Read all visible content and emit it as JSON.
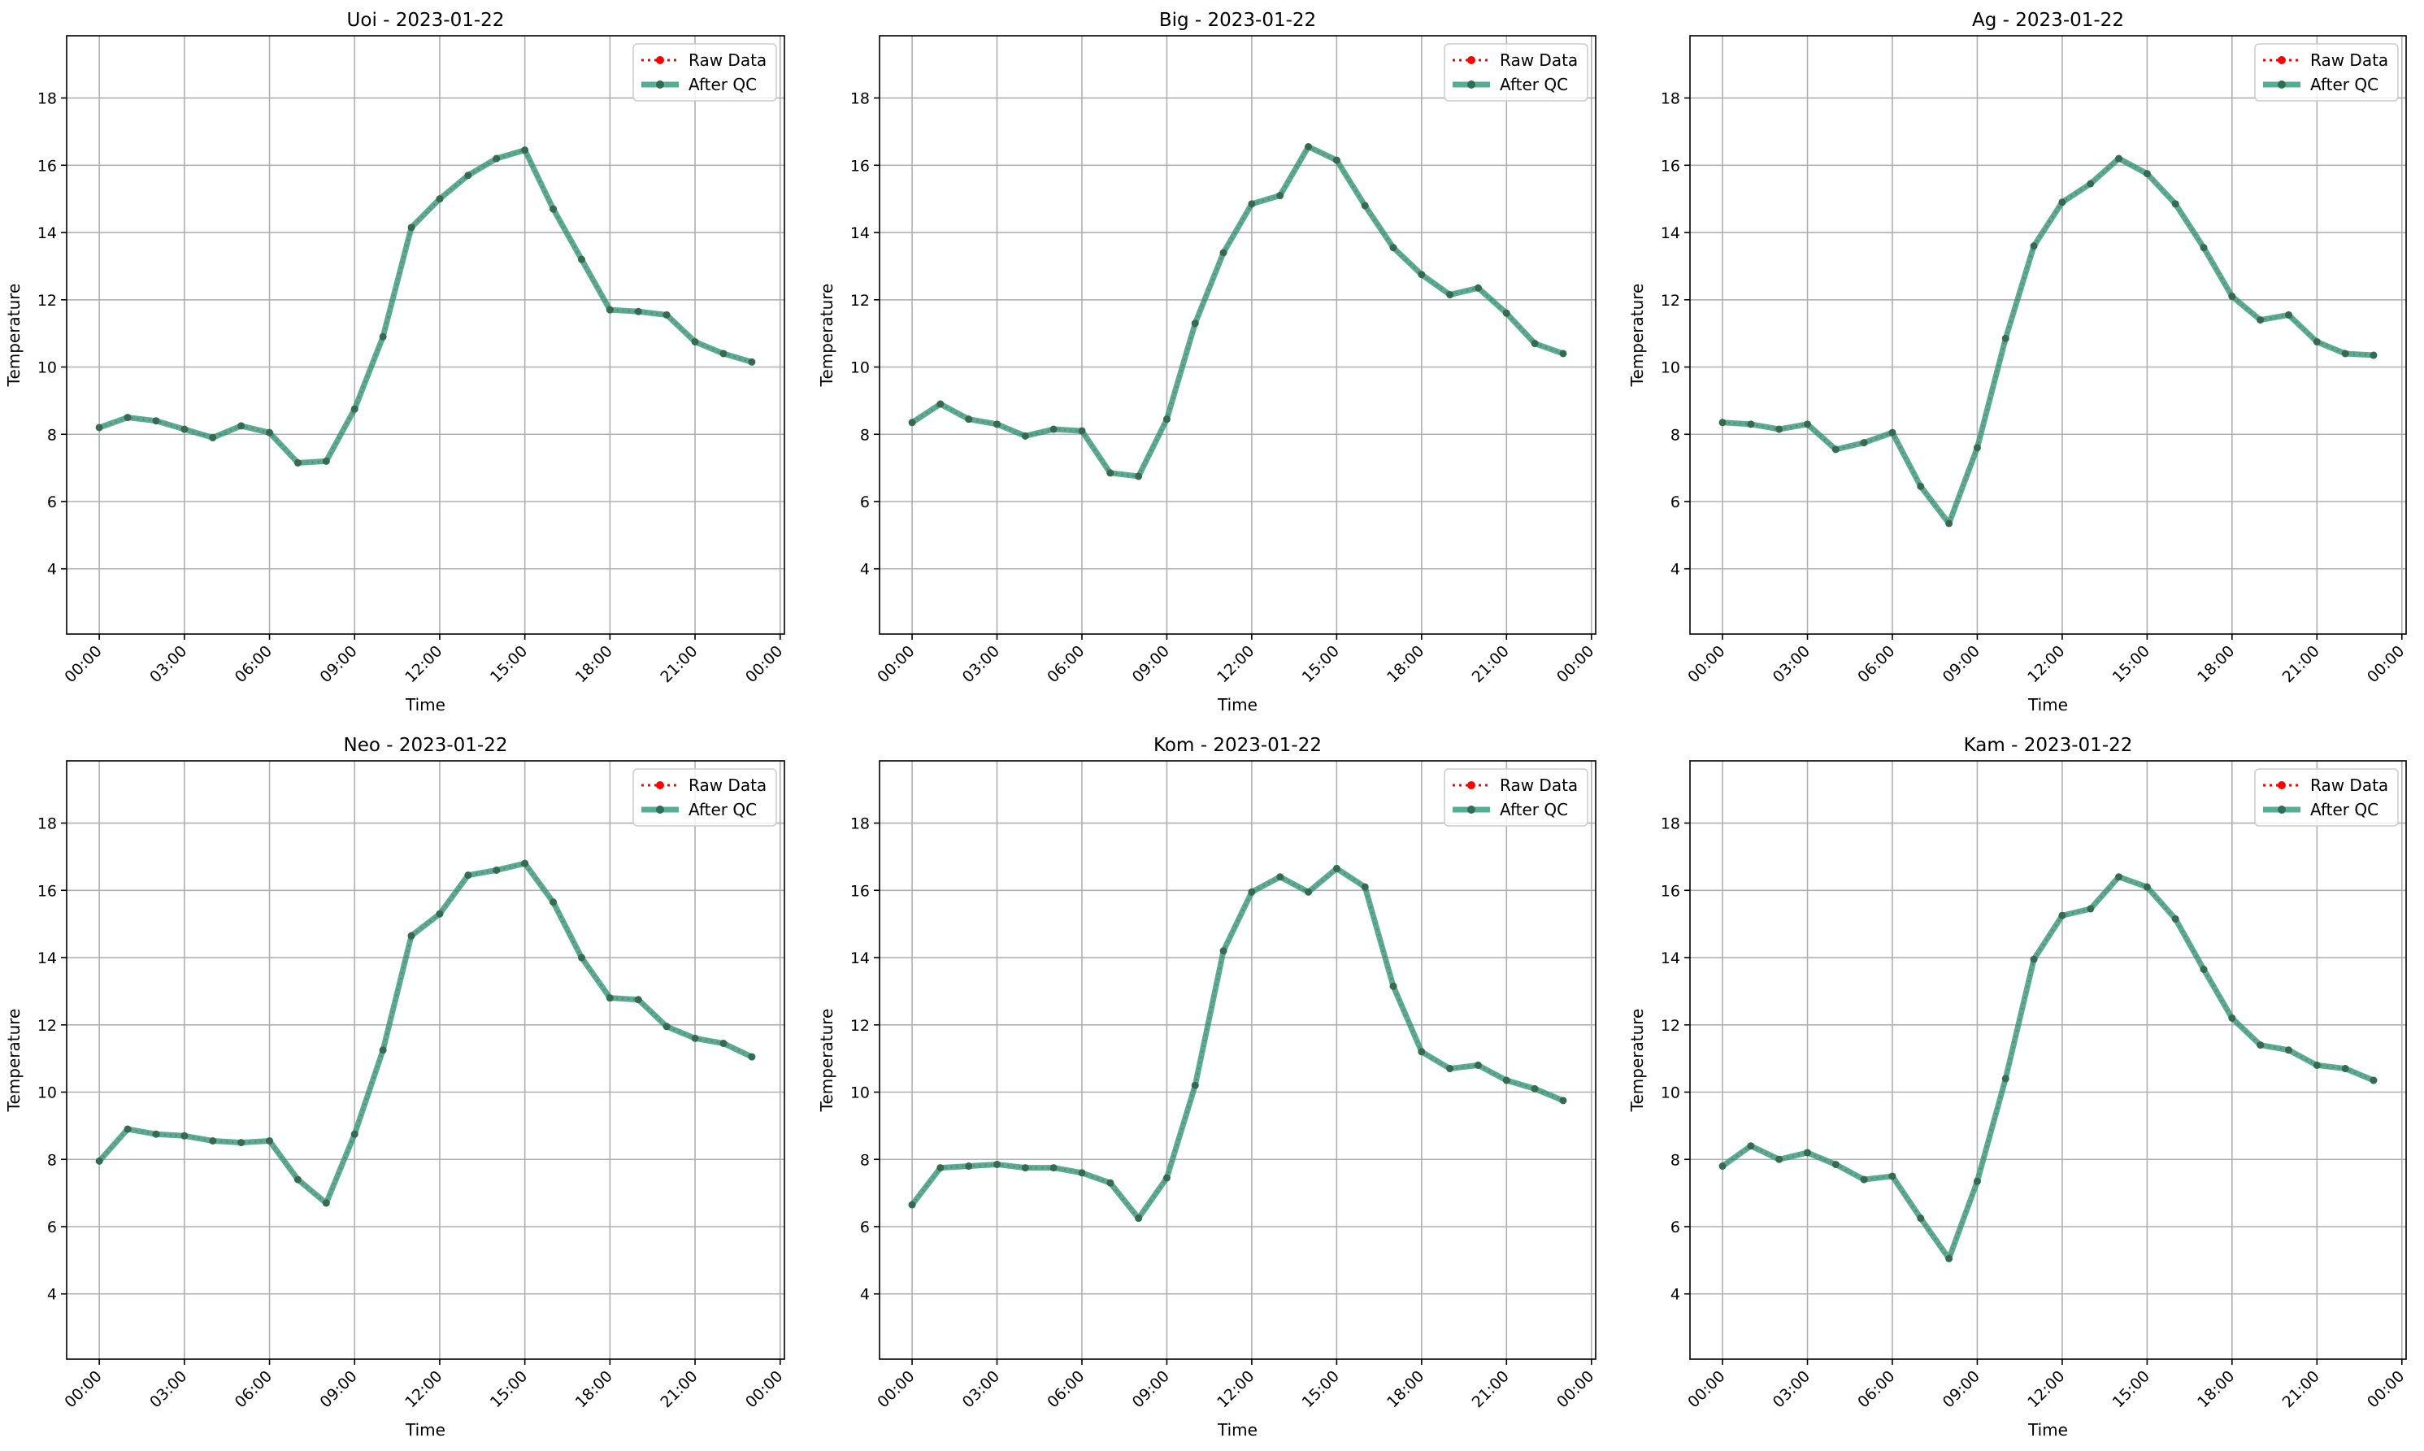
{
  "colors": {
    "raw": "#ff0000",
    "qc_line": "#2a9a78",
    "qc_marker": "#2e6e55",
    "grid": "#b0b0b0"
  },
  "chart_data": [
    {
      "type": "line",
      "title": "Uoi - 2023-01-22",
      "xlabel": "Time",
      "ylabel": "Temperature",
      "x_ticks": [
        "00:00",
        "03:00",
        "06:00",
        "09:00",
        "12:00",
        "15:00",
        "18:00",
        "21:00",
        "00:00"
      ],
      "y_ticks": [
        4,
        6,
        8,
        10,
        12,
        14,
        16,
        18
      ],
      "ylim": [
        2.06,
        19.85
      ],
      "xlim_hours": [
        -1.15,
        24.15
      ],
      "grid": true,
      "legend_position": "top-right",
      "series": [
        {
          "name": "Raw Data",
          "values": [
            8.2,
            8.5,
            8.4,
            8.15,
            7.9,
            8.25,
            8.05,
            7.15,
            7.2,
            8.75,
            10.9,
            14.15,
            15.0,
            15.7,
            16.2,
            16.45,
            14.7,
            13.2,
            11.7,
            11.65,
            11.55,
            10.75,
            10.4,
            10.15
          ]
        },
        {
          "name": "After QC",
          "values": [
            8.2,
            8.5,
            8.4,
            8.15,
            7.9,
            8.25,
            8.05,
            7.15,
            7.2,
            8.75,
            10.9,
            14.15,
            15.0,
            15.7,
            16.2,
            16.45,
            14.7,
            13.2,
            11.7,
            11.65,
            11.55,
            10.75,
            10.4,
            10.15
          ]
        }
      ]
    },
    {
      "type": "line",
      "title": "Big - 2023-01-22",
      "xlabel": "Time",
      "ylabel": "Temperature",
      "x_ticks": [
        "00:00",
        "03:00",
        "06:00",
        "09:00",
        "12:00",
        "15:00",
        "18:00",
        "21:00",
        "00:00"
      ],
      "y_ticks": [
        4,
        6,
        8,
        10,
        12,
        14,
        16,
        18
      ],
      "ylim": [
        2.06,
        19.85
      ],
      "xlim_hours": [
        -1.15,
        24.15
      ],
      "grid": true,
      "legend_position": "top-right",
      "series": [
        {
          "name": "Raw Data",
          "values": [
            8.35,
            8.9,
            8.45,
            8.3,
            7.95,
            8.15,
            8.1,
            6.85,
            6.75,
            8.45,
            11.3,
            13.4,
            14.85,
            15.1,
            16.55,
            16.15,
            14.8,
            13.55,
            12.75,
            12.15,
            12.35,
            11.6,
            10.7,
            10.4
          ]
        },
        {
          "name": "After QC",
          "values": [
            8.35,
            8.9,
            8.45,
            8.3,
            7.95,
            8.15,
            8.1,
            6.85,
            6.75,
            8.45,
            11.3,
            13.4,
            14.85,
            15.1,
            16.55,
            16.15,
            14.8,
            13.55,
            12.75,
            12.15,
            12.35,
            11.6,
            10.7,
            10.4
          ]
        }
      ]
    },
    {
      "type": "line",
      "title": "Ag - 2023-01-22",
      "xlabel": "Time",
      "ylabel": "Temperature",
      "x_ticks": [
        "00:00",
        "03:00",
        "06:00",
        "09:00",
        "12:00",
        "15:00",
        "18:00",
        "21:00",
        "00:00"
      ],
      "y_ticks": [
        4,
        6,
        8,
        10,
        12,
        14,
        16,
        18
      ],
      "ylim": [
        2.06,
        19.85
      ],
      "xlim_hours": [
        -1.15,
        24.15
      ],
      "grid": true,
      "legend_position": "top-right",
      "series": [
        {
          "name": "Raw Data",
          "values": [
            8.35,
            8.3,
            8.15,
            8.3,
            7.55,
            7.75,
            8.05,
            6.45,
            5.35,
            7.6,
            10.85,
            13.6,
            14.9,
            15.45,
            16.2,
            15.75,
            14.85,
            13.55,
            12.1,
            11.4,
            11.55,
            10.75,
            10.4,
            10.35
          ]
        },
        {
          "name": "After QC",
          "values": [
            8.35,
            8.3,
            8.15,
            8.3,
            7.55,
            7.75,
            8.05,
            6.45,
            5.35,
            7.6,
            10.85,
            13.6,
            14.9,
            15.45,
            16.2,
            15.75,
            14.85,
            13.55,
            12.1,
            11.4,
            11.55,
            10.75,
            10.4,
            10.35
          ]
        }
      ]
    },
    {
      "type": "line",
      "title": "Neo - 2023-01-22",
      "xlabel": "Time",
      "ylabel": "Temperature",
      "x_ticks": [
        "00:00",
        "03:00",
        "06:00",
        "09:00",
        "12:00",
        "15:00",
        "18:00",
        "21:00",
        "00:00"
      ],
      "y_ticks": [
        4,
        6,
        8,
        10,
        12,
        14,
        16,
        18
      ],
      "ylim": [
        2.06,
        19.85
      ],
      "xlim_hours": [
        -1.15,
        24.15
      ],
      "grid": true,
      "legend_position": "top-right",
      "series": [
        {
          "name": "Raw Data",
          "values": [
            7.95,
            8.9,
            8.75,
            8.7,
            8.55,
            8.5,
            8.55,
            7.4,
            6.7,
            8.75,
            11.25,
            14.65,
            15.3,
            16.45,
            16.6,
            16.8,
            15.65,
            14.0,
            12.8,
            12.75,
            11.95,
            11.6,
            11.45,
            11.05
          ]
        },
        {
          "name": "After QC",
          "values": [
            7.95,
            8.9,
            8.75,
            8.7,
            8.55,
            8.5,
            8.55,
            7.4,
            6.7,
            8.75,
            11.25,
            14.65,
            15.3,
            16.45,
            16.6,
            16.8,
            15.65,
            14.0,
            12.8,
            12.75,
            11.95,
            11.6,
            11.45,
            11.05
          ]
        }
      ]
    },
    {
      "type": "line",
      "title": "Kom - 2023-01-22",
      "xlabel": "Time",
      "ylabel": "Temperature",
      "x_ticks": [
        "00:00",
        "03:00",
        "06:00",
        "09:00",
        "12:00",
        "15:00",
        "18:00",
        "21:00",
        "00:00"
      ],
      "y_ticks": [
        4,
        6,
        8,
        10,
        12,
        14,
        16,
        18
      ],
      "ylim": [
        2.06,
        19.85
      ],
      "xlim_hours": [
        -1.15,
        24.15
      ],
      "grid": true,
      "legend_position": "top-right",
      "series": [
        {
          "name": "Raw Data",
          "values": [
            6.65,
            7.75,
            7.8,
            7.85,
            7.75,
            7.75,
            7.6,
            7.3,
            6.25,
            7.45,
            10.2,
            14.2,
            15.95,
            16.4,
            15.95,
            16.65,
            16.1,
            13.15,
            11.2,
            10.7,
            10.8,
            10.35,
            10.1,
            9.75
          ]
        },
        {
          "name": "After QC",
          "values": [
            6.65,
            7.75,
            7.8,
            7.85,
            7.75,
            7.75,
            7.6,
            7.3,
            6.25,
            7.45,
            10.2,
            14.2,
            15.95,
            16.4,
            15.95,
            16.65,
            16.1,
            13.15,
            11.2,
            10.7,
            10.8,
            10.35,
            10.1,
            9.75
          ]
        }
      ]
    },
    {
      "type": "line",
      "title": "Kam - 2023-01-22",
      "xlabel": "Time",
      "ylabel": "Temperature",
      "x_ticks": [
        "00:00",
        "03:00",
        "06:00",
        "09:00",
        "12:00",
        "15:00",
        "18:00",
        "21:00",
        "00:00"
      ],
      "y_ticks": [
        4,
        6,
        8,
        10,
        12,
        14,
        16,
        18
      ],
      "ylim": [
        2.06,
        19.85
      ],
      "xlim_hours": [
        -1.15,
        24.15
      ],
      "grid": true,
      "legend_position": "top-right",
      "series": [
        {
          "name": "Raw Data",
          "values": [
            7.8,
            8.4,
            8.0,
            8.2,
            7.85,
            7.4,
            7.5,
            6.25,
            5.05,
            7.35,
            10.4,
            13.95,
            15.25,
            15.45,
            16.4,
            16.1,
            15.15,
            13.65,
            12.2,
            11.4,
            11.25,
            10.8,
            10.7,
            10.35
          ]
        },
        {
          "name": "After QC",
          "values": [
            7.8,
            8.4,
            8.0,
            8.2,
            7.85,
            7.4,
            7.5,
            6.25,
            5.05,
            7.35,
            10.4,
            13.95,
            15.25,
            15.45,
            16.4,
            16.1,
            15.15,
            13.65,
            12.2,
            11.4,
            11.25,
            10.8,
            10.7,
            10.35
          ]
        }
      ]
    }
  ]
}
